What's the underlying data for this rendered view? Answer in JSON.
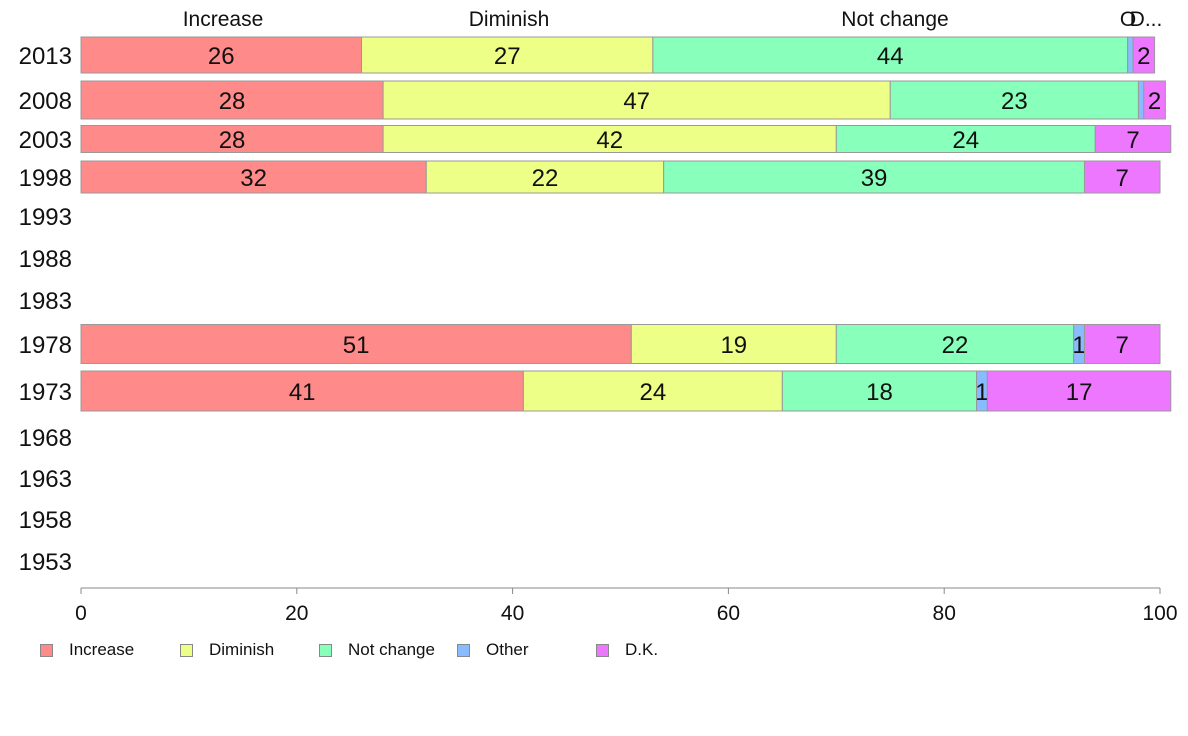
{
  "chart_data": {
    "type": "bar",
    "orientation": "horizontal",
    "stacked": true,
    "categories": [
      "2013",
      "2008",
      "2003",
      "1998",
      "1993",
      "1988",
      "1983",
      "1978",
      "1973",
      "1968",
      "1963",
      "1958",
      "1953"
    ],
    "series": [
      {
        "name": "Increase",
        "color": "#ff8a8a",
        "values": [
          26,
          28,
          28,
          32,
          null,
          null,
          null,
          51,
          41,
          null,
          null,
          null,
          null
        ]
      },
      {
        "name": "Diminish",
        "color": "#eeff88",
        "values": [
          27,
          47,
          42,
          22,
          null,
          null,
          null,
          19,
          24,
          null,
          null,
          null,
          null
        ]
      },
      {
        "name": "Not change",
        "color": "#88ffbb",
        "values": [
          44,
          23,
          24,
          39,
          null,
          null,
          null,
          22,
          18,
          null,
          null,
          null,
          null
        ]
      },
      {
        "name": "Other",
        "color": "#88bbff",
        "values": [
          0.5,
          0.5,
          0,
          0,
          null,
          null,
          null,
          1,
          1,
          null,
          null,
          null,
          null
        ]
      },
      {
        "name": "D.K.",
        "color": "#ee77ff",
        "values": [
          2,
          2,
          7,
          7,
          null,
          null,
          null,
          7,
          17,
          null,
          null,
          null,
          null
        ]
      }
    ],
    "segment_labels": [
      [
        "26",
        "27",
        "44",
        "",
        "2"
      ],
      [
        "28",
        "47",
        "23",
        "",
        "2"
      ],
      [
        "28",
        "42",
        "24",
        "",
        "7"
      ],
      [
        "32",
        "22",
        "39",
        "",
        "7"
      ],
      [],
      [],
      [],
      [
        "51",
        "19",
        "22",
        "1",
        "7"
      ],
      [
        "41",
        "24",
        "18",
        "1",
        "17"
      ],
      [],
      [],
      [],
      []
    ],
    "top_labels": [
      "Increase",
      "Diminish",
      "Not change",
      "O",
      "D..."
    ],
    "xlim": [
      0,
      100
    ],
    "xticks": [
      0,
      20,
      40,
      60,
      80,
      100
    ],
    "grid": false,
    "legend": {
      "position": "bottom-left",
      "items": [
        "Increase",
        "Diminish",
        "Not change",
        "Other",
        "D.K."
      ]
    }
  }
}
